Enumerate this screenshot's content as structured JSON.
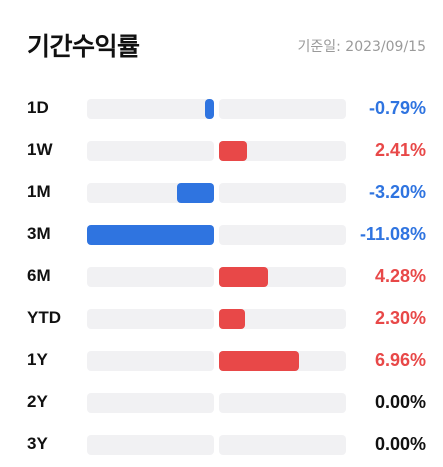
{
  "header": {
    "title": "기간수익률",
    "base_date": "기준일: 2023/09/15"
  },
  "colors": {
    "negative": "#2f74e0",
    "positive": "#e84848",
    "zero": "#111111",
    "track": "#f1f1f3"
  },
  "scale_max_abs": 11.08,
  "chart_data": {
    "type": "bar",
    "categories": [
      "1D",
      "1W",
      "1M",
      "3M",
      "6M",
      "YTD",
      "1Y",
      "2Y",
      "3Y"
    ],
    "values": [
      -0.79,
      2.41,
      -3.2,
      -11.08,
      4.28,
      2.3,
      6.96,
      0.0,
      0.0
    ],
    "labels": [
      "-0.79%",
      "2.41%",
      "-3.20%",
      "-11.08%",
      "4.28%",
      "2.30%",
      "6.96%",
      "0.00%",
      "0.00%"
    ]
  }
}
